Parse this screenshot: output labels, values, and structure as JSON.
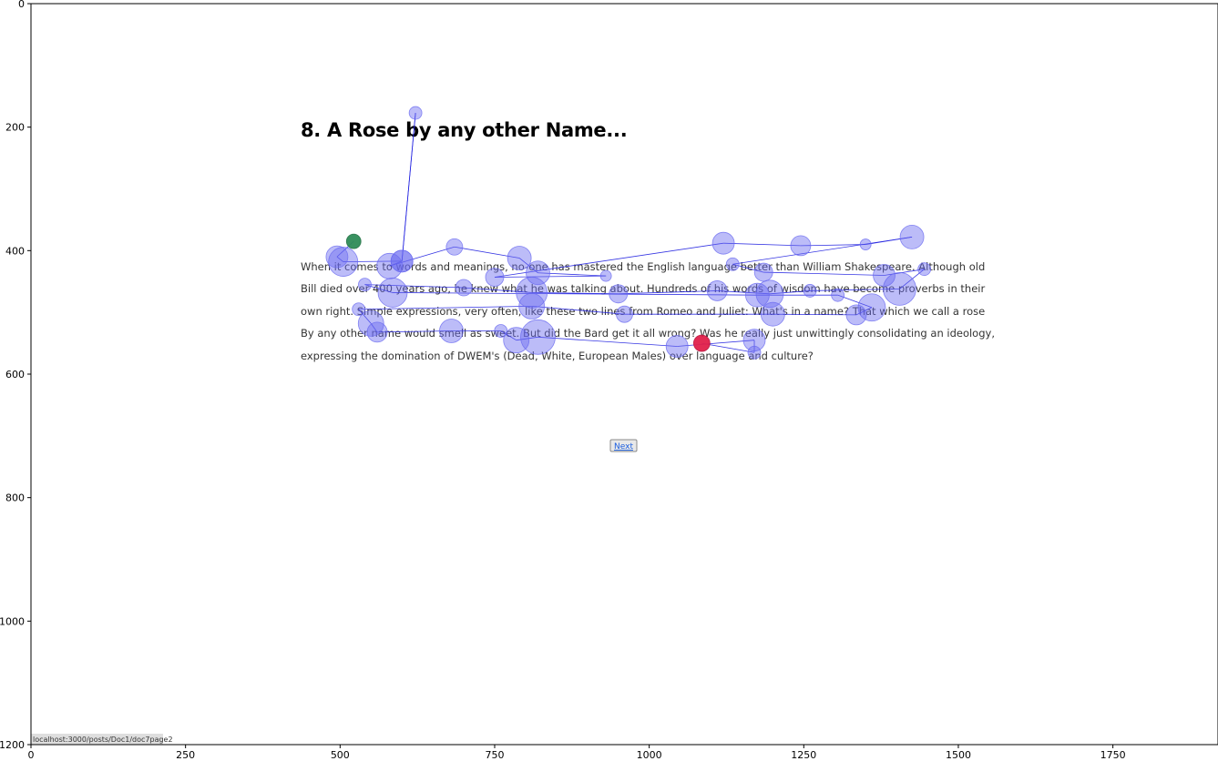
{
  "page": {
    "title": "8. A Rose by any other Name...",
    "paragraph_lines": [
      "When it comes to words and meanings, no-one has mastered the English language better than William Shakespeare. Although old",
      "Bill died over 400 years ago, he knew what he was talking about. Hundreds of his words of wisdom have become proverbs in their",
      "own right. Simple expressions, very often, like these two lines from Romeo and Juliet: What's in a name? That which we call a rose",
      "By any other name would smell as sweet. But did the Bard get it all wrong? Was he really just unwittingly consolidating an ideology,",
      "expressing the domination of DWEM's (Dead, White, European Males) over language and culture?"
    ],
    "next_label": "Next",
    "status_url": "localhost:3000/posts/Doc1/doc7page2"
  },
  "colors": {
    "fixation": "#6a6af0",
    "path": "#2020e0",
    "start": "#2e8b57",
    "end": "#e0204a"
  },
  "chart_data": {
    "type": "scatter",
    "title": "",
    "xlabel": "",
    "ylabel": "",
    "xlim": [
      0,
      1920
    ],
    "ylim": [
      1200,
      0
    ],
    "x_ticks": [
      0,
      250,
      500,
      750,
      1000,
      1250,
      1500,
      1750
    ],
    "y_ticks": [
      0,
      200,
      400,
      600,
      800,
      1000,
      1200
    ],
    "grid": false,
    "scanpath": [
      {
        "x": 522,
        "y": 385,
        "r": 8
      },
      {
        "x": 495,
        "y": 410,
        "r": 12
      },
      {
        "x": 505,
        "y": 418,
        "r": 16
      },
      {
        "x": 600,
        "y": 417,
        "r": 12
      },
      {
        "x": 622,
        "y": 177,
        "r": 7
      },
      {
        "x": 600,
        "y": 417,
        "r": 12
      },
      {
        "x": 580,
        "y": 425,
        "r": 14
      },
      {
        "x": 685,
        "y": 394,
        "r": 9
      },
      {
        "x": 790,
        "y": 412,
        "r": 13
      },
      {
        "x": 820,
        "y": 436,
        "r": 13
      },
      {
        "x": 930,
        "y": 441,
        "r": 6
      },
      {
        "x": 750,
        "y": 443,
        "r": 10
      },
      {
        "x": 1120,
        "y": 388,
        "r": 12
      },
      {
        "x": 1245,
        "y": 392,
        "r": 11
      },
      {
        "x": 1350,
        "y": 390,
        "r": 6
      },
      {
        "x": 1425,
        "y": 378,
        "r": 13
      },
      {
        "x": 1135,
        "y": 422,
        "r": 7
      },
      {
        "x": 1185,
        "y": 435,
        "r": 10
      },
      {
        "x": 1380,
        "y": 440,
        "r": 12
      },
      {
        "x": 1445,
        "y": 430,
        "r": 7
      },
      {
        "x": 1405,
        "y": 462,
        "r": 18
      },
      {
        "x": 1260,
        "y": 465,
        "r": 7
      },
      {
        "x": 1195,
        "y": 470,
        "r": 15
      },
      {
        "x": 1110,
        "y": 465,
        "r": 11
      },
      {
        "x": 950,
        "y": 470,
        "r": 10
      },
      {
        "x": 810,
        "y": 468,
        "r": 17
      },
      {
        "x": 700,
        "y": 460,
        "r": 9
      },
      {
        "x": 540,
        "y": 455,
        "r": 7
      },
      {
        "x": 585,
        "y": 468,
        "r": 16
      },
      {
        "x": 1175,
        "y": 472,
        "r": 13
      },
      {
        "x": 1305,
        "y": 472,
        "r": 7
      },
      {
        "x": 1360,
        "y": 492,
        "r": 15
      },
      {
        "x": 1335,
        "y": 504,
        "r": 11
      },
      {
        "x": 1200,
        "y": 503,
        "r": 13
      },
      {
        "x": 960,
        "y": 503,
        "r": 9
      },
      {
        "x": 810,
        "y": 490,
        "r": 14
      },
      {
        "x": 530,
        "y": 495,
        "r": 7
      },
      {
        "x": 550,
        "y": 518,
        "r": 14
      },
      {
        "x": 560,
        "y": 532,
        "r": 11
      },
      {
        "x": 680,
        "y": 530,
        "r": 13
      },
      {
        "x": 760,
        "y": 530,
        "r": 7
      },
      {
        "x": 785,
        "y": 545,
        "r": 14
      },
      {
        "x": 820,
        "y": 540,
        "r": 19
      },
      {
        "x": 1045,
        "y": 555,
        "r": 12
      },
      {
        "x": 1170,
        "y": 545,
        "r": 12
      },
      {
        "x": 1170,
        "y": 565,
        "r": 7
      },
      {
        "x": 1085,
        "y": 550,
        "r": 9
      }
    ]
  }
}
